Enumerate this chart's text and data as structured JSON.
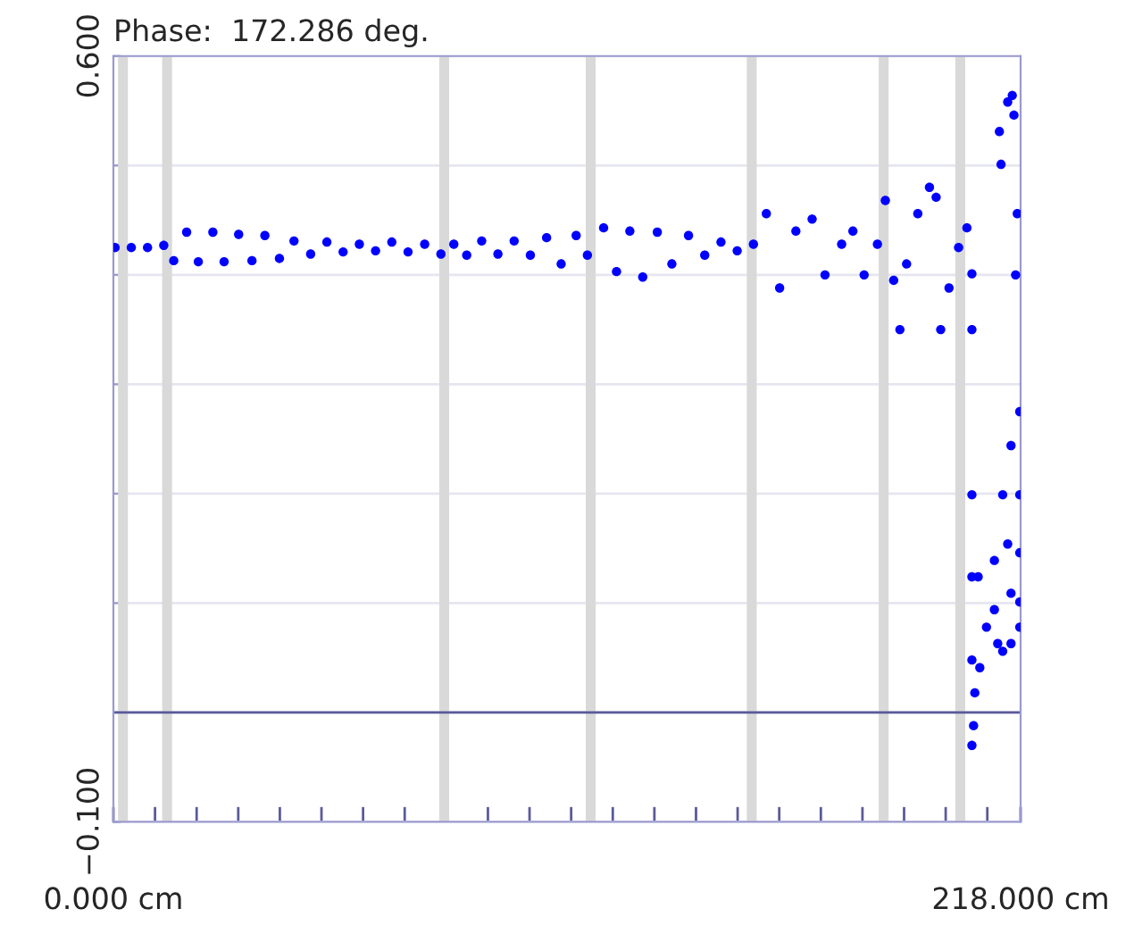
{
  "chart_data": {
    "type": "scatter",
    "title": "Phase:  172.286 deg.",
    "x": [
      0.4,
      4.3,
      8.2,
      12.1,
      14.5,
      17.6,
      20.4,
      23.9,
      26.6,
      30.1,
      33.3,
      36.4,
      39.9,
      43.4,
      47.4,
      51.3,
      55.2,
      59.1,
      63.0,
      66.9,
      70.8,
      74.8,
      78.7,
      81.8,
      84.9,
      88.5,
      92.4,
      96.3,
      100.2,
      104.1,
      107.6,
      111.2,
      113.9,
      117.8,
      120.9,
      124.1,
      127.2,
      130.7,
      134.2,
      138.2,
      142.1,
      146.0,
      149.9,
      153.8,
      156.9,
      160.1,
      164.0,
      167.9,
      171.0,
      175.0,
      177.7,
      180.4,
      183.6,
      185.5,
      187.5,
      189.0,
      190.6,
      193.3,
      196.1,
      197.7,
      198.8,
      200.8,
      203.1,
      205.1,
      206.3,
      206.3,
      206.3,
      206.3,
      206.7,
      206.3,
      206.3,
      207.0,
      208.2,
      207.8,
      209.8,
      211.7,
      213.7,
      215.7,
      217.8,
      211.7,
      214.9,
      217.8,
      212.5,
      215.7,
      217.8,
      213.7,
      217.8,
      215.7,
      217.8,
      212.9,
      213.3,
      214.9,
      216.0,
      217.2,
      216.8,
      216.4
    ],
    "values": [
      0.425,
      0.425,
      0.425,
      0.427,
      0.413,
      0.439,
      0.412,
      0.439,
      0.412,
      0.437,
      0.413,
      0.436,
      0.415,
      0.431,
      0.419,
      0.43,
      0.421,
      0.428,
      0.422,
      0.43,
      0.421,
      0.428,
      0.419,
      0.428,
      0.418,
      0.431,
      0.419,
      0.431,
      0.418,
      0.434,
      0.41,
      0.436,
      0.418,
      0.443,
      0.403,
      0.44,
      0.398,
      0.439,
      0.41,
      0.436,
      0.418,
      0.43,
      0.422,
      0.428,
      0.456,
      0.388,
      0.44,
      0.451,
      0.4,
      0.428,
      0.44,
      0.4,
      0.428,
      0.468,
      0.395,
      0.35,
      0.41,
      0.456,
      0.48,
      0.471,
      0.35,
      0.388,
      0.425,
      0.443,
      0.35,
      0.199,
      0.124,
      0.048,
      -0.012,
      -0.03,
      0.401,
      0.018,
      0.041,
      0.124,
      0.078,
      0.139,
      0.199,
      0.244,
      0.275,
      0.094,
      0.154,
      0.199,
      0.063,
      0.109,
      0.146,
      0.056,
      0.101,
      0.063,
      0.078,
      0.531,
      0.501,
      0.558,
      0.564,
      0.456,
      0.4,
      0.546
    ],
    "color": "#0000ff",
    "marker": "circle",
    "xlim": [
      0,
      218
    ],
    "xticks": [
      {
        "value": 0,
        "label": "0.000 cm"
      },
      {
        "value": 10,
        "label": null
      },
      {
        "value": 20,
        "label": null
      },
      {
        "value": 30,
        "label": null
      },
      {
        "value": 40,
        "label": null
      },
      {
        "value": 50,
        "label": null
      },
      {
        "value": 60,
        "label": null
      },
      {
        "value": 70,
        "label": null
      },
      {
        "value": 80,
        "label": null
      },
      {
        "value": 90,
        "label": null
      },
      {
        "value": 100,
        "label": null
      },
      {
        "value": 110,
        "label": null
      },
      {
        "value": 120,
        "label": null
      },
      {
        "value": 130,
        "label": null
      },
      {
        "value": 140,
        "label": null
      },
      {
        "value": 150,
        "label": null
      },
      {
        "value": 160,
        "label": null
      },
      {
        "value": 170,
        "label": null
      },
      {
        "value": 180,
        "label": null
      },
      {
        "value": 190,
        "label": null
      },
      {
        "value": 200,
        "label": null
      },
      {
        "value": 210,
        "label": null
      },
      {
        "value": 218,
        "label": "218.000 cm"
      }
    ],
    "ylim": [
      -0.1,
      0.6
    ],
    "yticks": [
      {
        "value": -0.1,
        "label": "−0.100"
      },
      {
        "value": 0,
        "label": null
      },
      {
        "value": 0.1,
        "label": null
      },
      {
        "value": 0.2,
        "label": null
      },
      {
        "value": 0.3,
        "label": null
      },
      {
        "value": 0.4,
        "label": null
      },
      {
        "value": 0.5,
        "label": null
      },
      {
        "value": 0.6,
        "label": "0.600"
      }
    ],
    "grid": "y",
    "ref_lines": [
      {
        "axis": "y",
        "value": 0,
        "color": "#5a5a9a"
      },
      {
        "axis": "x",
        "value": 2.3,
        "color": "#d9d9d9"
      },
      {
        "axis": "x",
        "value": 12.9,
        "color": "#d9d9d9"
      },
      {
        "axis": "x",
        "value": 79.5,
        "color": "#d9d9d9"
      },
      {
        "axis": "x",
        "value": 114.7,
        "color": "#d9d9d9"
      },
      {
        "axis": "x",
        "value": 153.4,
        "color": "#d9d9d9"
      },
      {
        "axis": "x",
        "value": 185.1,
        "color": "#d9d9d9"
      },
      {
        "axis": "x",
        "value": 203.5,
        "color": "#d9d9d9"
      }
    ]
  }
}
